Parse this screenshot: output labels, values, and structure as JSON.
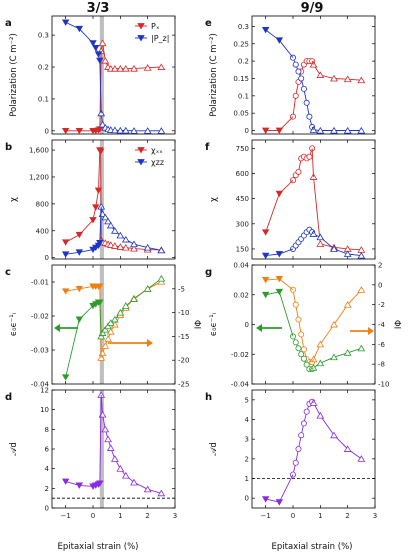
{
  "figure": {
    "columns": [
      {
        "title": "3/3"
      },
      {
        "title": "9/9"
      }
    ],
    "xlabel": "Epitaxial strain (%)"
  },
  "colors": {
    "red": "#d62828",
    "blue": "#1f35c4",
    "orange": "#f07f12",
    "green": "#2e9b2e",
    "purple": "#8a2be2",
    "shade": "#b4b4b4"
  },
  "chart_data": [
    {
      "panel": "a",
      "type": "line",
      "column": "3/3",
      "ylabel": "Polarization (C m⁻²)",
      "xlim": [
        -1.5,
        3
      ],
      "ylim": [
        -0.01,
        0.36
      ],
      "xticks": [
        -1,
        0,
        1,
        2,
        3
      ],
      "yticks": [
        0,
        0.1,
        0.2,
        0.3
      ],
      "ytick_labels": [
        "0",
        "0.1",
        "0.2",
        "0.3"
      ],
      "shade": [
        0.25,
        0.4
      ],
      "legend": [
        "Pₓ",
        "|P_z|"
      ],
      "series": [
        {
          "name": "Px",
          "color": "red",
          "marker": "tri-down-filled",
          "x": [
            -1,
            -0.5,
            0,
            0.1,
            0.2,
            0.25
          ],
          "y": [
            0,
            0,
            0,
            0,
            0.002,
            0.005
          ]
        },
        {
          "name": "Px",
          "color": "red",
          "marker": "tri-up-open",
          "x": [
            0.3,
            0.35,
            0.45,
            0.55,
            0.65,
            0.8,
            1,
            1.2,
            1.5,
            2,
            2.5
          ],
          "y": [
            0.25,
            0.275,
            0.22,
            0.2,
            0.195,
            0.195,
            0.195,
            0.195,
            0.195,
            0.198,
            0.2
          ]
        },
        {
          "name": "|Pz|",
          "color": "blue",
          "marker": "tri-down-filled",
          "x": [
            -1,
            -0.5,
            0,
            0.1,
            0.2,
            0.25
          ],
          "y": [
            0.34,
            0.32,
            0.275,
            0.26,
            0.24,
            0.22
          ]
        },
        {
          "name": "|Pz|",
          "color": "blue",
          "marker": "tri-up-open",
          "x": [
            0.3,
            0.35,
            0.45,
            0.55,
            0.65,
            0.8,
            1,
            1.2,
            1.5,
            2,
            2.5
          ],
          "y": [
            0.055,
            0.02,
            0.01,
            0.005,
            0.003,
            0.002,
            0.001,
            0.001,
            0,
            0,
            0
          ]
        }
      ]
    },
    {
      "panel": "b",
      "type": "line",
      "column": "3/3",
      "ylabel": "χ",
      "xlim": [
        -1.5,
        3
      ],
      "ylim": [
        -20,
        1750
      ],
      "xticks": [
        -1,
        0,
        1,
        2,
        3
      ],
      "yticks": [
        0,
        400,
        800,
        1200,
        1600
      ],
      "ytick_labels": [
        "0",
        "400",
        "800",
        "1,200",
        "1,600"
      ],
      "shade": [
        0.25,
        0.4
      ],
      "legend": [
        "χₓₓ",
        "χzz"
      ],
      "series": [
        {
          "name": "χxx",
          "color": "red",
          "marker": "tri-down-filled",
          "x": [
            -1,
            -0.5,
            0,
            0.1,
            0.2,
            0.25,
            0.28
          ],
          "y": [
            230,
            340,
            560,
            750,
            1000,
            1600,
            1580
          ]
        },
        {
          "name": "χxx",
          "color": "red",
          "marker": "tri-up-open",
          "x": [
            0.3,
            0.35,
            0.45,
            0.55,
            0.65,
            0.8,
            1,
            1.2,
            1.5,
            2,
            2.5
          ],
          "y": [
            260,
            230,
            220,
            200,
            190,
            175,
            160,
            150,
            135,
            120,
            115
          ]
        },
        {
          "name": "χzz",
          "color": "blue",
          "marker": "tri-down-filled",
          "x": [
            -1,
            -0.5,
            0,
            0.1,
            0.2,
            0.25
          ],
          "y": [
            50,
            80,
            120,
            150,
            180,
            220
          ]
        },
        {
          "name": "χzz",
          "color": "blue",
          "marker": "tri-up-open",
          "x": [
            0.3,
            0.35,
            0.45,
            0.55,
            0.65,
            0.8,
            1,
            1.2,
            1.5,
            2,
            2.5
          ],
          "y": [
            760,
            650,
            600,
            540,
            480,
            400,
            330,
            270,
            200,
            150,
            110
          ]
        }
      ]
    },
    {
      "panel": "c",
      "type": "line",
      "column": "3/3",
      "ylabel": "ϵ₀ϵ⁻¹ₗ",
      "ylabel_right": "IΦ",
      "xlim": [
        -1.5,
        3
      ],
      "ylim": [
        -0.04,
        -0.005
      ],
      "ylim_right": [
        -25,
        0
      ],
      "xticks": [
        -1,
        0,
        1,
        2,
        3
      ],
      "yticks": [
        -0.01,
        -0.02,
        -0.03,
        -0.04
      ],
      "ytick_labels": [
        "-0.01",
        "-0.02",
        "-0.03",
        "-0.04"
      ],
      "yticks_right": [
        -5,
        -10,
        -15,
        -20,
        -25
      ],
      "shade": [
        0.25,
        0.4
      ],
      "series": [
        {
          "name": "orange-left",
          "axis": "right",
          "color": "orange",
          "marker": "tri-down-filled",
          "x": [
            -1,
            -0.5,
            0,
            0.1,
            0.2,
            0.25
          ],
          "y": [
            -5.5,
            -5,
            -4.5,
            -4.5,
            -4.5,
            -4.5
          ]
        },
        {
          "name": "orange-right",
          "axis": "right",
          "color": "orange",
          "marker": "tri-up-open",
          "x": [
            0.3,
            0.35,
            0.45,
            0.55,
            0.65,
            0.8,
            1,
            1.2,
            1.5,
            2,
            2.5
          ],
          "y": [
            -19.5,
            -18.5,
            -17,
            -15.5,
            -14,
            -12.5,
            -10.5,
            -9,
            -7,
            -5,
            -3.5
          ]
        },
        {
          "name": "green-left",
          "axis": "left",
          "color": "green",
          "marker": "tri-down-filled",
          "x": [
            -1,
            -0.5,
            0,
            0.1,
            0.2,
            0.25
          ],
          "y": [
            -0.038,
            -0.021,
            -0.017,
            -0.0165,
            -0.016,
            -0.016
          ]
        },
        {
          "name": "green-right",
          "axis": "left",
          "color": "green",
          "marker": "tri-up-open",
          "x": [
            0.3,
            0.35,
            0.45,
            0.55,
            0.65,
            0.8,
            1,
            1.2,
            1.5,
            2,
            2.5
          ],
          "y": [
            -0.026,
            -0.025,
            -0.024,
            -0.023,
            -0.022,
            -0.021,
            -0.019,
            -0.017,
            -0.015,
            -0.012,
            -0.009
          ]
        }
      ]
    },
    {
      "panel": "d",
      "type": "line",
      "column": "3/3",
      "ylabel": "𝒜d",
      "xlim": [
        -1.5,
        3
      ],
      "ylim": [
        0,
        12
      ],
      "xticks": [
        -1,
        0,
        1,
        2,
        3
      ],
      "yticks": [
        0,
        2,
        4,
        6,
        8,
        10,
        12
      ],
      "ytick_labels": [
        "0",
        "2",
        "4",
        "6",
        "8",
        "10",
        "12"
      ],
      "shade": [
        0.25,
        0.4
      ],
      "dashed_hline": 1,
      "series": [
        {
          "name": "Ad-left",
          "color": "purple",
          "marker": "tri-down-filled",
          "x": [
            -1,
            -0.5,
            0,
            0.1,
            0.2,
            0.25
          ],
          "y": [
            2.7,
            2.3,
            2.2,
            2.3,
            2.4,
            2.5
          ]
        },
        {
          "name": "Ad-right",
          "color": "purple",
          "marker": "tri-up-open",
          "x": [
            0.3,
            0.35,
            0.45,
            0.55,
            0.65,
            0.8,
            1,
            1.2,
            1.5,
            2,
            2.5
          ],
          "y": [
            11.5,
            9.5,
            8,
            7,
            6.1,
            5,
            4,
            3.3,
            2.6,
            1.9,
            1.5
          ]
        }
      ]
    },
    {
      "panel": "e",
      "type": "line",
      "column": "9/9",
      "ylabel": "Polarization (C m⁻²)",
      "xlim": [
        -1.5,
        3
      ],
      "ylim": [
        -0.01,
        0.33
      ],
      "xticks": [
        -1,
        0,
        1,
        2,
        3
      ],
      "yticks": [
        0,
        0.05,
        0.1,
        0.15,
        0.2,
        0.25,
        0.3
      ],
      "ytick_labels": [
        "0",
        "0.05",
        "0.1",
        "0.15",
        "0.2",
        "0.25",
        "0.3"
      ],
      "series": [
        {
          "name": "Px",
          "color": "red",
          "marker": "tri-down-filled",
          "x": [
            -1,
            -0.5
          ],
          "y": [
            0,
            0
          ]
        },
        {
          "name": "Px",
          "color": "red",
          "marker": "circle-open",
          "x": [
            0,
            0.1,
            0.2,
            0.3,
            0.4,
            0.5,
            0.6,
            0.7
          ],
          "y": [
            0.04,
            0.1,
            0.14,
            0.17,
            0.19,
            0.2,
            0.2,
            0.2
          ]
        },
        {
          "name": "Px",
          "color": "red",
          "marker": "tri-up-open",
          "x": [
            0.75,
            1,
            1.5,
            2,
            2.5
          ],
          "y": [
            0.19,
            0.16,
            0.15,
            0.148,
            0.145
          ]
        },
        {
          "name": "Pz",
          "color": "blue",
          "marker": "tri-down-filled",
          "x": [
            -1,
            -0.5
          ],
          "y": [
            0.29,
            0.26
          ]
        },
        {
          "name": "Pz",
          "color": "blue",
          "marker": "circle-open",
          "x": [
            0,
            0.1,
            0.2,
            0.3,
            0.4,
            0.5,
            0.6,
            0.7
          ],
          "y": [
            0.21,
            0.19,
            0.17,
            0.15,
            0.12,
            0.08,
            0.04,
            0.01
          ]
        },
        {
          "name": "Pz",
          "color": "blue",
          "marker": "tri-up-open",
          "x": [
            0.75,
            1,
            1.5,
            2,
            2.5
          ],
          "y": [
            0.002,
            0,
            0,
            0,
            0
          ]
        }
      ]
    },
    {
      "panel": "f",
      "type": "line",
      "column": "9/9",
      "ylabel": "χ",
      "xlim": [
        -1.5,
        3
      ],
      "ylim": [
        90,
        800
      ],
      "xticks": [
        -1,
        0,
        1,
        2,
        3
      ],
      "yticks": [
        150,
        300,
        450,
        600,
        750
      ],
      "ytick_labels": [
        "150",
        "300",
        "450",
        "600",
        "750"
      ],
      "series": [
        {
          "name": "χxx",
          "color": "red",
          "marker": "tri-down-filled",
          "x": [
            -1,
            -0.5
          ],
          "y": [
            250,
            480
          ]
        },
        {
          "name": "χxx",
          "color": "red",
          "marker": "circle-open",
          "x": [
            0,
            0.1,
            0.2,
            0.3,
            0.4,
            0.5,
            0.6,
            0.7
          ],
          "y": [
            560,
            590,
            610,
            690,
            700,
            690,
            700,
            750
          ]
        },
        {
          "name": "χxx",
          "color": "red",
          "marker": "tri-up-open",
          "x": [
            0.75,
            1,
            1.5,
            2,
            2.5
          ],
          "y": [
            580,
            180,
            160,
            150,
            145
          ]
        },
        {
          "name": "χzz",
          "color": "blue",
          "marker": "tri-down-filled",
          "x": [
            -1,
            -0.5
          ],
          "y": [
            110,
            120
          ]
        },
        {
          "name": "χzz",
          "color": "blue",
          "marker": "circle-open",
          "x": [
            0,
            0.1,
            0.2,
            0.3,
            0.4,
            0.5,
            0.6,
            0.7
          ],
          "y": [
            150,
            170,
            190,
            210,
            230,
            250,
            265,
            250
          ]
        },
        {
          "name": "χzz",
          "color": "blue",
          "marker": "tri-up-open",
          "x": [
            0.75,
            1,
            1.5,
            2,
            2.5
          ],
          "y": [
            240,
            220,
            150,
            120,
            110
          ]
        }
      ]
    },
    {
      "panel": "g",
      "type": "line",
      "column": "9/9",
      "ylabel": "ϵ₀ϵ⁻¹ₗ",
      "ylabel_right": "IΦ",
      "xlim": [
        -1.5,
        3
      ],
      "ylim": [
        -0.04,
        0.04
      ],
      "ylim_right": [
        -10,
        2
      ],
      "xticks": [
        -1,
        0,
        1,
        2,
        3
      ],
      "yticks": [
        0.04,
        0.02,
        0,
        -0.02,
        -0.04
      ],
      "ytick_labels": [
        "0.04",
        "0.02",
        "0",
        "-0.02",
        "-0.04"
      ],
      "yticks_right": [
        2,
        0,
        -2,
        -4,
        -6,
        -8,
        -10
      ],
      "series": [
        {
          "name": "orange-left",
          "axis": "right",
          "color": "orange",
          "marker": "tri-down-filled",
          "x": [
            -1,
            -0.5
          ],
          "y": [
            0.5,
            0.6
          ]
        },
        {
          "name": "orange-mid",
          "axis": "right",
          "color": "orange",
          "marker": "circle-open",
          "x": [
            0,
            0.1,
            0.2,
            0.3,
            0.4,
            0.5,
            0.6,
            0.7
          ],
          "y": [
            -0.5,
            -2,
            -3.5,
            -5,
            -6.5,
            -7.5,
            -7.8,
            -7.8
          ]
        },
        {
          "name": "orange-right",
          "axis": "right",
          "color": "orange",
          "marker": "tri-up-open",
          "x": [
            0.75,
            1,
            1.5,
            2,
            2.5
          ],
          "y": [
            -7.5,
            -6,
            -4,
            -2,
            -0.5
          ]
        },
        {
          "name": "green-left",
          "axis": "left",
          "color": "green",
          "marker": "tri-down-filled",
          "x": [
            -1,
            -0.5
          ],
          "y": [
            0.02,
            0.022
          ]
        },
        {
          "name": "green-mid",
          "axis": "left",
          "color": "green",
          "marker": "circle-open",
          "x": [
            0,
            0.1,
            0.2,
            0.3,
            0.4,
            0.5,
            0.6,
            0.7
          ],
          "y": [
            -0.008,
            -0.012,
            -0.016,
            -0.02,
            -0.023,
            -0.027,
            -0.03,
            -0.03
          ]
        },
        {
          "name": "green-right",
          "axis": "left",
          "color": "green",
          "marker": "tri-up-open",
          "x": [
            0.75,
            1,
            1.5,
            2,
            2.5
          ],
          "y": [
            -0.029,
            -0.026,
            -0.022,
            -0.019,
            -0.016
          ]
        }
      ]
    },
    {
      "panel": "h",
      "type": "line",
      "column": "9/9",
      "ylabel": "𝒜d",
      "xlim": [
        -1.5,
        3
      ],
      "ylim": [
        -0.5,
        5.5
      ],
      "xticks": [
        -1,
        0,
        1,
        2,
        3
      ],
      "yticks": [
        0,
        1,
        2,
        3,
        4,
        5
      ],
      "ytick_labels": [
        "0",
        "1",
        "2",
        "3",
        "4",
        "5"
      ],
      "dashed_hline": 1,
      "series": [
        {
          "name": "Ad-left",
          "color": "purple",
          "marker": "tri-down-filled",
          "x": [
            -1,
            -0.5
          ],
          "y": [
            -0.05,
            -0.2
          ]
        },
        {
          "name": "Ad-mid",
          "color": "purple",
          "marker": "circle-open",
          "x": [
            0,
            0.1,
            0.2,
            0.3,
            0.4,
            0.5,
            0.6,
            0.7
          ],
          "y": [
            1.2,
            1.8,
            2.5,
            3.2,
            3.8,
            4.4,
            4.8,
            4.9
          ]
        },
        {
          "name": "Ad-right",
          "color": "purple",
          "marker": "tri-up-open",
          "x": [
            0.75,
            1,
            1.5,
            2,
            2.5
          ],
          "y": [
            4.85,
            4.2,
            3.2,
            2.5,
            2.0
          ]
        }
      ]
    }
  ]
}
